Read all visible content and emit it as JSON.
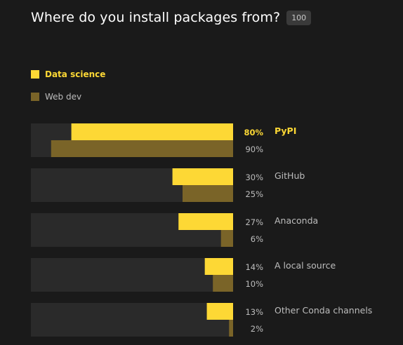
{
  "header": {
    "title": "Where do you install packages from?",
    "badge": "100"
  },
  "colors": {
    "background": "#1a1a1a",
    "track": "#2a2a2a",
    "series_primary": "#fdd835",
    "series_secondary": "#7a6428",
    "text_muted": "#bdbdbd",
    "text_highlight": "#fdd835"
  },
  "chart_data": {
    "type": "bar",
    "orientation": "horizontal",
    "categories": [
      "PyPI",
      "GitHub",
      "Anaconda",
      "A local source",
      "Other Conda channels"
    ],
    "series": [
      {
        "name": "Data science",
        "values": [
          80,
          30,
          27,
          14,
          13
        ],
        "labels": [
          "80%",
          "30%",
          "27%",
          "14%",
          "13%"
        ],
        "color": "#fdd835"
      },
      {
        "name": "Web dev",
        "values": [
          90,
          25,
          6,
          10,
          2
        ],
        "labels": [
          "90%",
          "25%",
          "6%",
          "10%",
          "2%"
        ],
        "color": "#7a6428"
      }
    ],
    "xlim": [
      0,
      100
    ],
    "bar_direction": "right-to-left",
    "highlight_category": "PyPI",
    "legend_position": "top-left",
    "grid": false
  }
}
